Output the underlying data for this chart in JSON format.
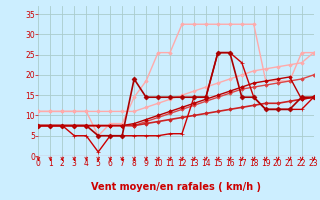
{
  "xlabel": "Vent moyen/en rafales ( km/h )",
  "background_color": "#cceeff",
  "grid_color": "#aacccc",
  "x_ticks": [
    0,
    1,
    2,
    3,
    4,
    5,
    6,
    7,
    8,
    9,
    10,
    11,
    12,
    13,
    14,
    15,
    16,
    17,
    18,
    19,
    20,
    21,
    22,
    23
  ],
  "ylim": [
    0,
    37
  ],
  "xlim": [
    0,
    23
  ],
  "y_ticks": [
    0,
    5,
    10,
    15,
    20,
    25,
    30,
    35
  ],
  "tick_label_color": "#cc0000",
  "xlabel_color": "#cc0000",
  "tick_fontsize": 5.5,
  "xlabel_fontsize": 7,
  "lines": [
    {
      "x": [
        0,
        1,
        2,
        3,
        4,
        5,
        6,
        7,
        8,
        9,
        10,
        11,
        12,
        13,
        14,
        15,
        16,
        17,
        18,
        19,
        20,
        21,
        22,
        23
      ],
      "y": [
        11,
        11,
        11,
        11,
        11,
        11,
        11,
        11,
        11,
        12,
        13,
        14,
        15,
        16,
        17,
        18,
        19,
        20,
        21,
        21.5,
        22,
        22.5,
        23,
        25.5
      ],
      "color": "#ffaaaa",
      "linewidth": 1.0,
      "marker": "D",
      "markersize": 1.8
    },
    {
      "x": [
        0,
        1,
        2,
        3,
        4,
        5,
        6,
        7,
        8,
        9,
        10,
        11,
        12,
        13,
        14,
        15,
        16,
        17,
        18,
        19,
        20,
        21,
        22,
        23
      ],
      "y": [
        11,
        11,
        11,
        11,
        11,
        5,
        8,
        8,
        14.5,
        18.5,
        25.5,
        25.5,
        32.5,
        32.5,
        32.5,
        32.5,
        32.5,
        32.5,
        32.5,
        18.5,
        18.5,
        18.5,
        25.5,
        25.5
      ],
      "color": "#ffaaaa",
      "linewidth": 1.0,
      "marker": "D",
      "markersize": 1.8
    },
    {
      "x": [
        0,
        1,
        2,
        3,
        4,
        5,
        6,
        7,
        8,
        9,
        10,
        11,
        12,
        13,
        14,
        15,
        16,
        17,
        18,
        19,
        20,
        21,
        22,
        23
      ],
      "y": [
        7.5,
        7.5,
        7.5,
        7.5,
        7.5,
        7.5,
        7.5,
        7.5,
        7.5,
        8.5,
        9.5,
        10.5,
        11.5,
        12.5,
        13.5,
        14.5,
        15.5,
        16.5,
        17.0,
        17.5,
        18.0,
        18.5,
        19.0,
        20.0
      ],
      "color": "#dd4444",
      "linewidth": 1.0,
      "marker": "D",
      "markersize": 1.8
    },
    {
      "x": [
        0,
        1,
        2,
        3,
        4,
        5,
        6,
        7,
        8,
        9,
        10,
        11,
        12,
        13,
        14,
        15,
        16,
        17,
        18,
        19,
        20,
        21,
        22,
        23
      ],
      "y": [
        7.5,
        7.5,
        7.5,
        7.5,
        7.5,
        7.5,
        7.5,
        7.5,
        7.5,
        8.0,
        8.5,
        9.0,
        9.5,
        10.0,
        10.5,
        11.0,
        11.5,
        12.0,
        12.5,
        13.0,
        13.0,
        13.5,
        14.0,
        14.5
      ],
      "color": "#cc2222",
      "linewidth": 1.2,
      "marker": "D",
      "markersize": 1.8
    },
    {
      "x": [
        0,
        1,
        2,
        3,
        4,
        5,
        6,
        7,
        8,
        9,
        10,
        11,
        12,
        13,
        14,
        15,
        16,
        17,
        18,
        19,
        20,
        21,
        22,
        23
      ],
      "y": [
        7.5,
        7.5,
        7.5,
        5,
        5,
        1,
        5,
        5,
        5,
        5,
        5,
        5.5,
        5.5,
        14.5,
        14.5,
        25.5,
        25.5,
        23,
        14.5,
        11.5,
        11.5,
        11.5,
        11.5,
        14.5
      ],
      "color": "#cc0000",
      "linewidth": 1.0,
      "marker": "+",
      "markersize": 3.0
    },
    {
      "x": [
        0,
        1,
        2,
        3,
        4,
        5,
        6,
        7,
        8,
        9,
        10,
        11,
        12,
        13,
        14,
        15,
        16,
        17,
        18,
        19,
        20,
        21,
        22,
        23
      ],
      "y": [
        7.5,
        7.5,
        7.5,
        7.5,
        7.5,
        5,
        5,
        5,
        19,
        14.5,
        14.5,
        14.5,
        14.5,
        14.5,
        14.5,
        25.5,
        25.5,
        14.5,
        14.5,
        11.5,
        11.5,
        11.5,
        14.5,
        14.5
      ],
      "color": "#aa0000",
      "linewidth": 1.2,
      "marker": "D",
      "markersize": 2.5
    },
    {
      "x": [
        0,
        1,
        2,
        3,
        4,
        5,
        6,
        7,
        8,
        9,
        10,
        11,
        12,
        13,
        14,
        15,
        16,
        17,
        18,
        19,
        20,
        21,
        22,
        23
      ],
      "y": [
        7.5,
        7.5,
        7.5,
        7.5,
        7.5,
        7.5,
        7.5,
        7.5,
        8,
        9,
        10,
        11,
        12,
        13,
        14,
        15,
        16,
        17,
        18,
        18.5,
        19,
        19.5,
        14,
        14.5
      ],
      "color": "#bb0000",
      "linewidth": 1.0,
      "marker": "D",
      "markersize": 1.8
    }
  ]
}
